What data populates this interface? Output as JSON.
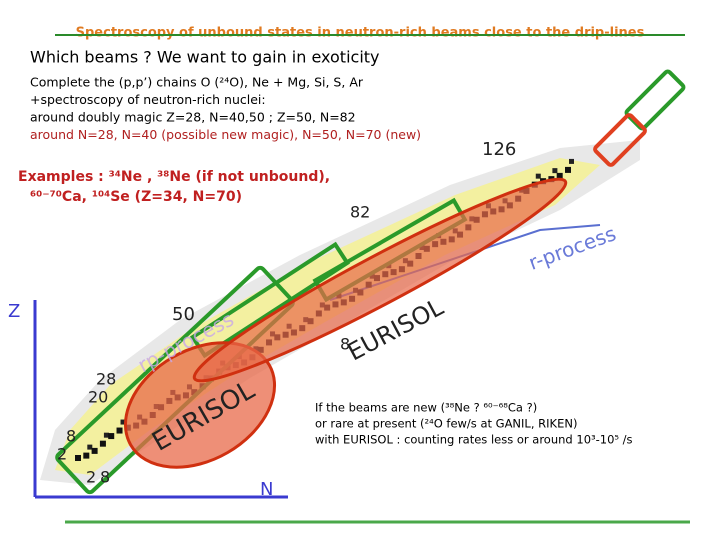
{
  "header": {
    "title": "Spectroscopy of unbound states in neutron-rich beams close to the drip-lines",
    "subtitle": "Which beams ? We want to gain in exoticity"
  },
  "intro": [
    "Complete the (p,p’) chains O (²⁴O), Ne + Mg, Si, S, Ar",
    "+spectroscopy of neutron-rich nuclei:",
    "around doubly magic Z=28, N=40,50 ; Z=50, N=82",
    "around N=28, N=40 (possible new magic), N=50, N=70 (new)"
  ],
  "examples": [
    "Examples : ³⁴Ne , ³⁸Ne (if not unbound),",
    "⁶⁰⁻⁷⁰Ca, ¹⁰⁴Se (Z=34, N=70)"
  ],
  "nuclear_chart": {
    "magic_labels": [
      "126",
      "82",
      "50",
      "28",
      "20",
      "8",
      "2",
      "2",
      "8",
      "8"
    ],
    "process_labels": [
      "r-process",
      "rp-process"
    ],
    "facility_labels": [
      "EURISOL",
      "EURISOL"
    ],
    "axes": {
      "z": "Z",
      "n": "N"
    }
  },
  "note": [
    "If the beams are new (³⁸Ne ? ⁶⁰⁻⁶⁸Ca ?)",
    "or rare at present (²⁴O few/s at GANIL, RIKEN)",
    "with EURISOL : counting rates less or around 10³-10⁵ /s"
  ]
}
